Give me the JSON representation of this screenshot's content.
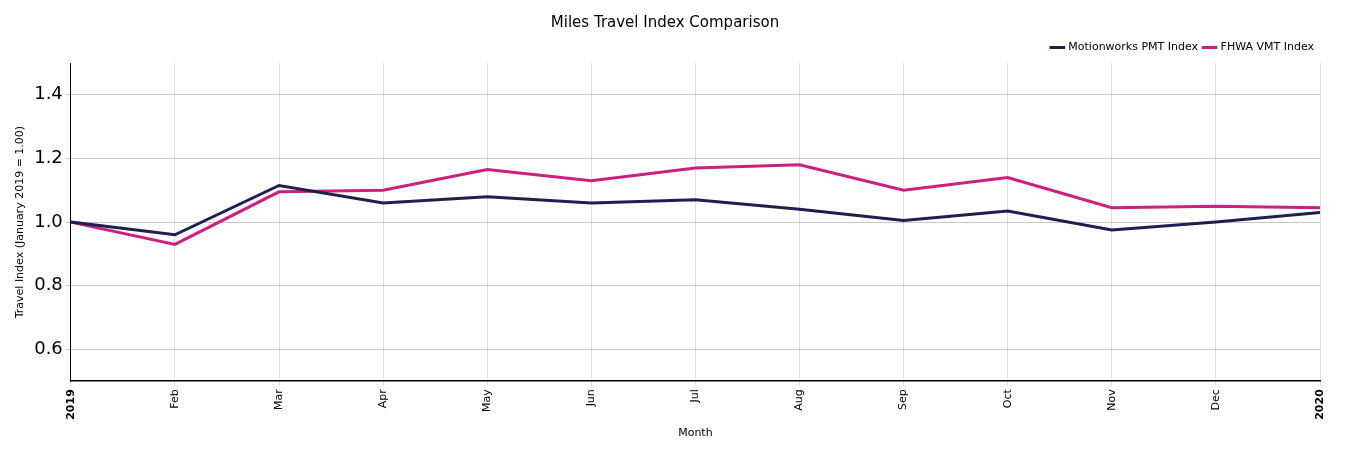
{
  "chart_data": {
    "type": "line",
    "title": "Miles Travel Index Comparison",
    "x_label": "Month",
    "y_label": "Travel Index (January 2019 = 1.00)",
    "categories": [
      "2019",
      "Feb",
      "Mar",
      "Apr",
      "May",
      "Jun",
      "Jul",
      "Aug",
      "Sep",
      "Oct",
      "Nov",
      "Dec",
      "2020"
    ],
    "series": [
      {
        "name": "Motionworks PMT Index",
        "color": "#1f1f4f",
        "values": [
          1.0,
          0.96,
          1.115,
          1.06,
          1.08,
          1.06,
          1.07,
          1.04,
          1.005,
          1.035,
          0.975,
          1.0,
          1.03
        ]
      },
      {
        "name": "FHWA VMT Index",
        "color": "#cc1f7f",
        "values": [
          1.0,
          0.93,
          1.095,
          1.1,
          1.165,
          1.13,
          1.17,
          1.18,
          1.1,
          1.14,
          1.045,
          1.05,
          1.045
        ]
      }
    ],
    "ylim": [
      0.5,
      1.5
    ],
    "yticks": [
      {
        "value": 0.6,
        "label": "0.6"
      },
      {
        "value": 0.8,
        "label": "0.8"
      },
      {
        "value": 1.0,
        "label": "1.0"
      },
      {
        "value": 1.2,
        "label": "1.2"
      },
      {
        "value": 1.4,
        "label": "1.4"
      }
    ],
    "grid": true,
    "legend": "upper right"
  }
}
